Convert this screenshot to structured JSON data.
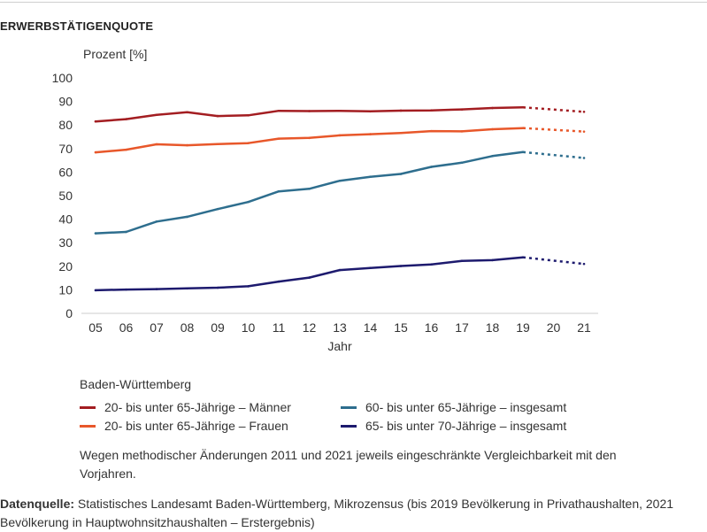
{
  "heading": "ERWERBSTÄTIGENQUOTE",
  "region": "Baden-Württemberg",
  "note": "Wegen methodischer Änderungen 2011 und 2021 jeweils eingeschränkte Vergleichbarkeit mit den Vorjahren.",
  "source": {
    "label": "Datenquelle:",
    "text": " Statistisches Landesamt Baden-Württemberg, Mikrozensus (bis 2019 Bevölkerung in Privathaushalten, 2021 Bevölkerung in Hauptwohnsitzhaushalten – Erstergebnis)"
  },
  "chart_data": {
    "type": "line",
    "title": "ERWERBSTÄTIGENQUOTE",
    "ylabel": "Prozent [%]",
    "xlabel": "Jahr",
    "ylim": [
      0,
      100
    ],
    "yticks": [
      0,
      10,
      20,
      30,
      40,
      50,
      60,
      70,
      80,
      90,
      100
    ],
    "categories": [
      "05",
      "06",
      "07",
      "08",
      "09",
      "10",
      "11",
      "12",
      "13",
      "14",
      "15",
      "16",
      "17",
      "18",
      "19",
      "20",
      "21"
    ],
    "solid_through": "19",
    "dashed_from": "19",
    "series": [
      {
        "name": "20- bis unter 65-Jährige – Männer",
        "color": "#a31d21",
        "values": [
          81.5,
          82.5,
          84.3,
          85.4,
          83.8,
          84.1,
          86.0,
          85.9,
          86.0,
          85.8,
          86.1,
          86.2,
          86.6,
          87.2,
          87.5,
          null,
          85.6
        ]
      },
      {
        "name": "20- bis unter 65-Jährige – Frauen",
        "color": "#e8572a",
        "values": [
          68.4,
          69.5,
          71.8,
          71.4,
          71.9,
          72.3,
          74.2,
          74.5,
          75.6,
          76.1,
          76.6,
          77.4,
          77.3,
          78.2,
          78.7,
          null,
          77.2
        ]
      },
      {
        "name": "60- bis unter 65-Jährige – insgesamt",
        "color": "#2e6e8e",
        "values": [
          34.0,
          34.6,
          39.0,
          41.0,
          44.3,
          47.3,
          51.8,
          52.9,
          56.3,
          58.0,
          59.2,
          62.2,
          64.0,
          66.8,
          68.5,
          null,
          66.0
        ]
      },
      {
        "name": "65- bis unter 70-Jährige – insgesamt",
        "color": "#1d1a6e",
        "values": [
          9.8,
          10.1,
          10.3,
          10.6,
          10.9,
          11.5,
          13.5,
          15.2,
          18.4,
          19.3,
          20.1,
          20.8,
          22.3,
          22.6,
          23.8,
          null,
          21.0
        ]
      }
    ],
    "legend": {
      "position": "bottom",
      "columns": 2
    }
  },
  "colors": {
    "axis": "#cccccc",
    "text": "#333333"
  }
}
